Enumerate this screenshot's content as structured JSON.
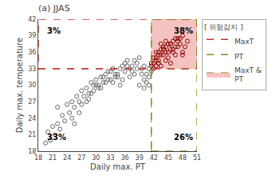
{
  "chart_data": {
    "type": "scatter",
    "title": "(a) JJAS",
    "xlabel": "Daily max. PT",
    "ylabel": "Daily max. temperature",
    "xlim": [
      18,
      51
    ],
    "ylim": [
      18,
      42
    ],
    "xticks": [
      18,
      21,
      24,
      27,
      30,
      33,
      36,
      39,
      42,
      45,
      48,
      51
    ],
    "yticks": [
      18,
      21,
      24,
      27,
      30,
      33,
      36,
      39,
      42
    ],
    "grid": false,
    "thresholds": {
      "x": 41.5,
      "y": 33.0
    },
    "series": [
      {
        "color": "#666666",
        "marker": "circle-open",
        "x": [
          19.5,
          20.5,
          20.0,
          21.0,
          21.5,
          22.0,
          22.5,
          23.0,
          23.5,
          24.0,
          24.5,
          25.0,
          25.5,
          26.0,
          26.5,
          27.0,
          27.5,
          28.0,
          28.5,
          29.0,
          29.5,
          30.0,
          30.5,
          31.0,
          31.5,
          32.0,
          32.5,
          33.0,
          33.5,
          34.0,
          34.5,
          35.0,
          35.5,
          36.0,
          36.5,
          37.0,
          37.5,
          38.0,
          38.5,
          39.0,
          39.5,
          40.0,
          40.5,
          41.0,
          22.0,
          25.0,
          27.0,
          29.0,
          31.0,
          33.0,
          35.0,
          37.0,
          39.0,
          40.0,
          41.0,
          28.0,
          30.0,
          32.0,
          34.0,
          36.0,
          38.0,
          39.5,
          40.5,
          25.5,
          26.5,
          28.5,
          29.5,
          30.5,
          31.5,
          32.5,
          33.5,
          34.5,
          35.5,
          36.5,
          37.5,
          38.5,
          40.0,
          41.0
        ],
        "values": [
          19.5,
          20.0,
          21.5,
          22.5,
          21.0,
          23.0,
          22.0,
          24.5,
          23.5,
          26.5,
          25.0,
          27.0,
          26.0,
          28.0,
          27.0,
          29.0,
          28.0,
          29.5,
          27.5,
          30.5,
          29.0,
          31.0,
          30.0,
          31.5,
          30.5,
          32.0,
          31.0,
          32.5,
          30.5,
          32.0,
          31.5,
          33.0,
          31.0,
          34.0,
          33.5,
          33.0,
          32.5,
          34.5,
          33.0,
          35.0,
          32.0,
          31.0,
          30.5,
          31.5,
          26.0,
          24.0,
          26.5,
          28.5,
          29.5,
          31.0,
          30.0,
          31.5,
          30.0,
          29.5,
          30.0,
          27.0,
          30.0,
          30.5,
          31.5,
          32.5,
          32.0,
          33.0,
          32.0,
          23.0,
          25.0,
          28.5,
          30.0,
          29.5,
          31.5,
          32.5,
          33.0,
          32.0,
          33.5,
          34.5,
          33.5,
          34.0,
          33.5,
          33.0
        ]
      },
      {
        "color": "#666666",
        "marker": "circle-open",
        "x": [
          41.5
        ],
        "values": [
          32.5
        ]
      },
      {
        "color": "#8B0000",
        "marker": "circle-open",
        "x": [
          42.0,
          42.5,
          43.0,
          43.5,
          44.0,
          44.5,
          45.0,
          45.5,
          46.0,
          46.5,
          47.0,
          47.5,
          48.0,
          48.5,
          49.0,
          42.0,
          43.0,
          44.0,
          45.0,
          46.0,
          47.0,
          48.0,
          43.5,
          44.5,
          45.5,
          46.5,
          42.5,
          43.0,
          44.5,
          41.5,
          42.0,
          43.5,
          44.0,
          45.5,
          41.5,
          42.5,
          43.5,
          44.5,
          45.5,
          46.5,
          47.5,
          42.5,
          43.0,
          44.0,
          45.0,
          46.0,
          47.0,
          48.0
        ],
        "values": [
          34.0,
          35.0,
          36.0,
          35.5,
          36.5,
          37.0,
          36.0,
          37.5,
          36.5,
          37.0,
          38.0,
          37.5,
          36.0,
          37.0,
          38.0,
          33.0,
          34.5,
          35.5,
          35.0,
          36.0,
          37.0,
          35.5,
          33.5,
          36.0,
          34.0,
          35.5,
          34.5,
          35.5,
          34.5,
          33.5,
          35.0,
          36.5,
          37.0,
          36.5,
          34.0,
          36.0,
          37.5,
          38.0,
          37.5,
          38.5,
          38.5,
          33.5,
          34.0,
          36.5,
          37.5,
          38.0,
          38.5,
          39.0
        ]
      }
    ],
    "regions": [
      {
        "name": "MaxT",
        "color": "#c0392b",
        "line_style": "dashed"
      },
      {
        "name": "PT",
        "color": "#7f8c1a",
        "line_style": "dashed"
      },
      {
        "name": "MaxT &\nPT",
        "color": "#f4b8b8",
        "edge_color": "#7f8c1a",
        "line_style": "dashed"
      }
    ],
    "legend_title": "[ 위험감지 ]",
    "annotations": [
      {
        "text": "3%",
        "x": 19.5,
        "y": 41.0
      },
      {
        "text": "38%",
        "x": 50.5,
        "y": 41.0
      },
      {
        "text": "33%",
        "x": 19.5,
        "y": 19.5
      },
      {
        "text": "26%",
        "x": 50.5,
        "y": 19.5
      }
    ]
  }
}
